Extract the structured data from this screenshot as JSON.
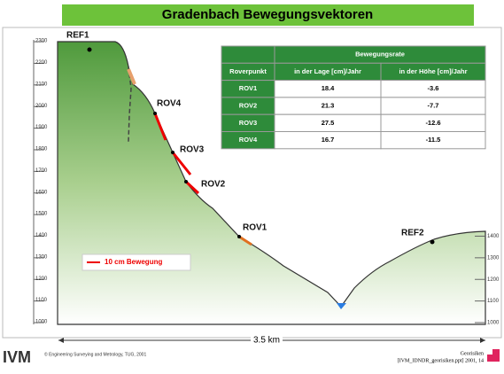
{
  "title": "Gradenbach Bewegungsvektoren",
  "left_axis": {
    "ticks": [
      2300,
      2200,
      2100,
      2000,
      1900,
      1800,
      1700,
      1600,
      1500,
      1400,
      1300,
      1200,
      1100,
      1000
    ]
  },
  "right_axis": {
    "ticks": [
      1400,
      1300,
      1200,
      1100,
      1000
    ]
  },
  "points": {
    "ref1": "REF1",
    "ref2": "REF2",
    "rov1": "ROV1",
    "rov2": "ROV2",
    "rov3": "ROV3",
    "rov4": "ROV4"
  },
  "legend": "10 cm Bewegung",
  "distance": "3.5 km",
  "table": {
    "group_header": "Bewegungsrate",
    "columns": [
      "Roverpunkt",
      "in der Lage [cm]/Jahr",
      "in der Höhe [cm]/Jahr"
    ],
    "rows": [
      [
        "ROV1",
        "18.4",
        "-3.6"
      ],
      [
        "ROV2",
        "21.3",
        "-7.7"
      ],
      [
        "ROV3",
        "27.5",
        "-12.6"
      ],
      [
        "ROV4",
        "16.7",
        "-11.5"
      ]
    ]
  },
  "footer": {
    "copyright": "© Engineering Surveying and Metrology, TUG, 2001",
    "topic": "Georisiken",
    "file": "[IVM_IDNDR_georisiken.ppt] 2001, 14"
  }
}
